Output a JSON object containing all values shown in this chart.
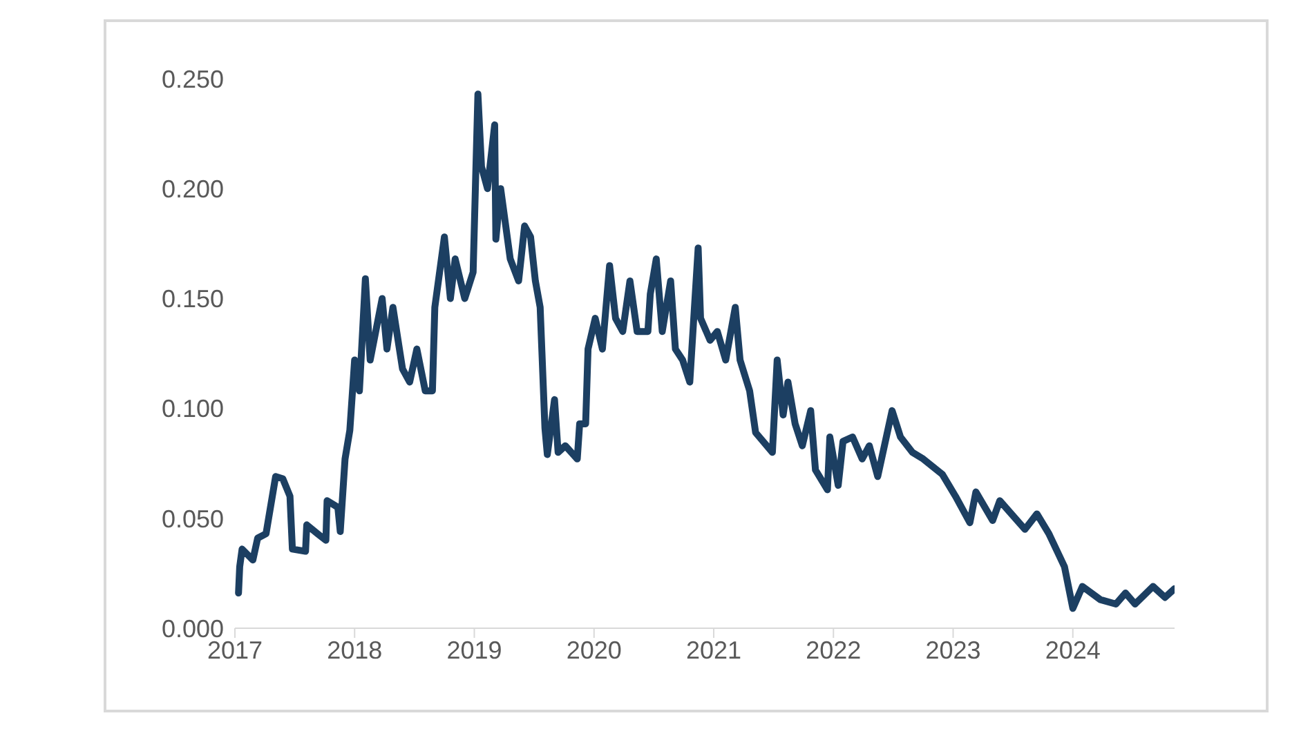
{
  "chart_data": {
    "type": "line",
    "x": [
      2017.03,
      2017.04,
      2017.06,
      2017.15,
      2017.19,
      2017.26,
      2017.34,
      2017.4,
      2017.46,
      2017.48,
      2017.59,
      2017.6,
      2017.69,
      2017.76,
      2017.77,
      2017.86,
      2017.88,
      2017.92,
      2017.96,
      2018.0,
      2018.04,
      2018.09,
      2018.13,
      2018.23,
      2018.27,
      2018.32,
      2018.4,
      2018.46,
      2018.52,
      2018.59,
      2018.65,
      2018.67,
      2018.75,
      2018.8,
      2018.84,
      2018.92,
      2018.99,
      2019.03,
      2019.06,
      2019.11,
      2019.17,
      2019.18,
      2019.22,
      2019.3,
      2019.37,
      2019.42,
      2019.47,
      2019.51,
      2019.55,
      2019.59,
      2019.61,
      2019.67,
      2019.7,
      2019.76,
      2019.86,
      2019.88,
      2019.93,
      2019.95,
      2020.01,
      2020.07,
      2020.13,
      2020.18,
      2020.24,
      2020.3,
      2020.36,
      2020.45,
      2020.47,
      2020.52,
      2020.57,
      2020.64,
      2020.68,
      2020.74,
      2020.8,
      2020.87,
      2020.89,
      2020.97,
      2021.03,
      2021.1,
      2021.18,
      2021.22,
      2021.3,
      2021.35,
      2021.49,
      2021.53,
      2021.58,
      2021.62,
      2021.68,
      2021.74,
      2021.81,
      2021.85,
      2021.95,
      2021.97,
      2022.04,
      2022.08,
      2022.16,
      2022.24,
      2022.3,
      2022.37,
      2022.49,
      2022.56,
      2022.66,
      2022.75,
      2022.91,
      2023.02,
      2023.14,
      2023.19,
      2023.33,
      2023.39,
      2023.6,
      2023.7,
      2023.8,
      2023.93,
      2024.0,
      2024.08,
      2024.23,
      2024.36,
      2024.44,
      2024.52,
      2024.67,
      2024.77,
      2024.85
    ],
    "series": [
      {
        "color": "#1c3f62",
        "values": [
          0.016,
          0.028,
          0.036,
          0.031,
          0.041,
          0.043,
          0.069,
          0.068,
          0.06,
          0.036,
          0.035,
          0.047,
          0.043,
          0.04,
          0.058,
          0.055,
          0.044,
          0.077,
          0.09,
          0.122,
          0.108,
          0.159,
          0.122,
          0.15,
          0.127,
          0.146,
          0.118,
          0.112,
          0.127,
          0.108,
          0.108,
          0.146,
          0.178,
          0.15,
          0.168,
          0.15,
          0.162,
          0.243,
          0.21,
          0.2,
          0.229,
          0.177,
          0.2,
          0.168,
          0.158,
          0.183,
          0.178,
          0.158,
          0.146,
          0.091,
          0.079,
          0.104,
          0.08,
          0.083,
          0.077,
          0.093,
          0.093,
          0.127,
          0.141,
          0.127,
          0.165,
          0.141,
          0.135,
          0.158,
          0.135,
          0.135,
          0.152,
          0.168,
          0.135,
          0.158,
          0.127,
          0.122,
          0.112,
          0.173,
          0.141,
          0.131,
          0.135,
          0.122,
          0.146,
          0.122,
          0.108,
          0.089,
          0.08,
          0.122,
          0.097,
          0.112,
          0.093,
          0.083,
          0.099,
          0.072,
          0.063,
          0.087,
          0.065,
          0.085,
          0.087,
          0.077,
          0.083,
          0.069,
          0.099,
          0.087,
          0.08,
          0.077,
          0.07,
          0.06,
          0.048,
          0.062,
          0.049,
          0.058,
          0.045,
          0.052,
          0.043,
          0.028,
          0.009,
          0.019,
          0.013,
          0.011,
          0.016,
          0.011,
          0.019,
          0.014,
          0.018
        ]
      }
    ],
    "xlim": [
      2017,
      2024.85
    ],
    "xticks": [
      2017,
      2018,
      2019,
      2020,
      2021,
      2022,
      2023,
      2024
    ],
    "ylim": [
      0,
      0.25
    ],
    "yticks": [
      {
        "value": 0,
        "label": "0.000"
      },
      {
        "value": 0.05,
        "label": "0.050"
      },
      {
        "value": 0.1,
        "label": "0.100"
      },
      {
        "value": 0.15,
        "label": "0.150"
      },
      {
        "value": 0.2,
        "label": "0.200"
      },
      {
        "value": 0.25,
        "label": "0.250"
      }
    ],
    "grid": false,
    "legend": false,
    "marker": "none",
    "line_style": "solid"
  }
}
